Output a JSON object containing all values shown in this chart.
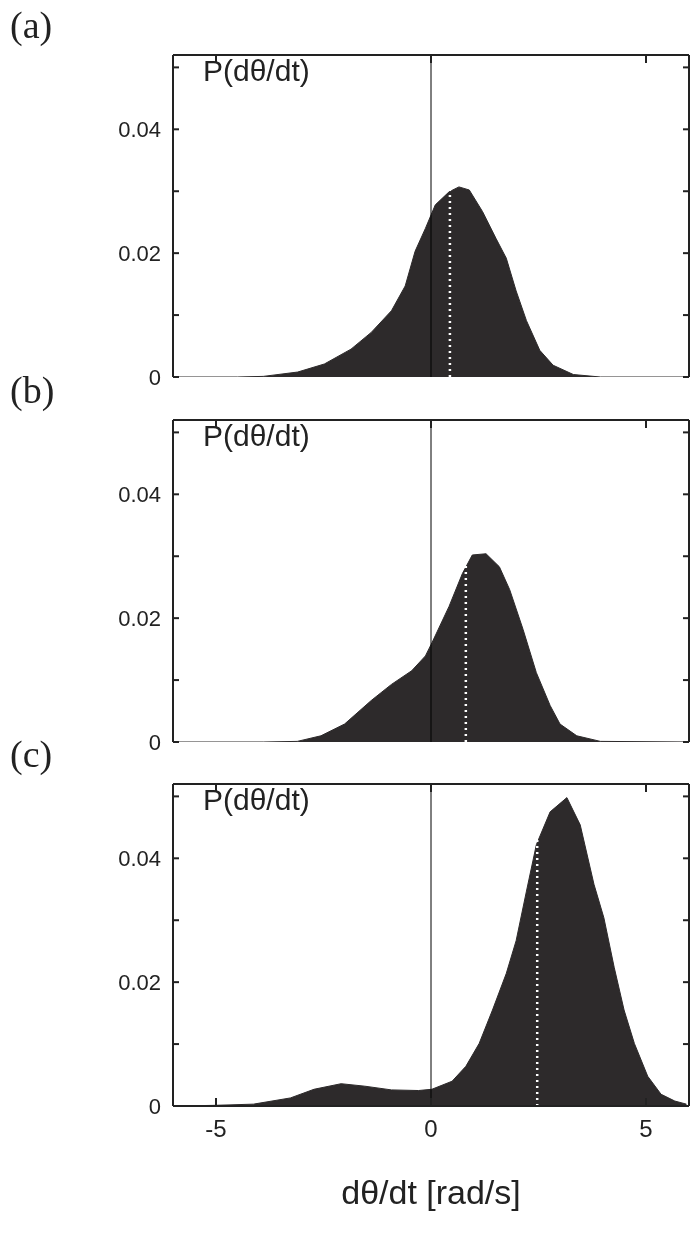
{
  "chart_data": [
    {
      "type": "area",
      "title": "(a)",
      "ylabel": "P(dθ/dt)",
      "xlim": [
        -6,
        6
      ],
      "xticks": [
        -5,
        0,
        5
      ],
      "ylim": [
        0,
        0.052
      ],
      "yticks": [
        0,
        {
          "value": 0.01,
          "label": null
        },
        0.02,
        {
          "value": 0.03,
          "label": null
        },
        0.04,
        {
          "value": 0.05,
          "label": null
        }
      ],
      "tick_labels": "y",
      "grid": false,
      "legend": false,
      "series": [
        {
          "color": "#2d2a2b",
          "x": [
            -6,
            -4.5,
            -3.9,
            -3.1,
            -2.48,
            -1.86,
            -1.39,
            -0.92,
            -0.6,
            -0.37,
            -0.13,
            0.1,
            0.42,
            0.65,
            0.89,
            1.2,
            1.51,
            1.75,
            1.98,
            2.22,
            2.53,
            2.84,
            3.31,
            3.94,
            6
          ],
          "values": [
            0,
            0,
            0.0001,
            0.0008,
            0.0021,
            0.0045,
            0.0072,
            0.0107,
            0.0147,
            0.0203,
            0.024,
            0.0278,
            0.0299,
            0.0307,
            0.0302,
            0.0267,
            0.0224,
            0.0192,
            0.0139,
            0.0091,
            0.0043,
            0.0019,
            0.0004,
            0,
            0
          ]
        }
      ],
      "ref_lines": [
        {
          "axis": "x",
          "value": 0,
          "color": "#000000",
          "line_style": "solid"
        },
        {
          "axis": "x",
          "value": 0.44,
          "color": "#ffffff",
          "line_style": "dotted"
        }
      ]
    },
    {
      "type": "area",
      "title": "(b)",
      "ylabel": "P(dθ/dt)",
      "xlim": [
        -6,
        6
      ],
      "xticks": [
        -5,
        0,
        5
      ],
      "ylim": [
        0,
        0.052
      ],
      "yticks": [
        0,
        {
          "value": 0.01,
          "label": null
        },
        0.02,
        {
          "value": 0.03,
          "label": null
        },
        0.04,
        {
          "value": 0.05,
          "label": null
        }
      ],
      "tick_labels": "y",
      "grid": false,
      "legend": false,
      "series": [
        {
          "color": "#2d2a2b",
          "x": [
            -6,
            -3.9,
            -3.11,
            -2.56,
            -2.01,
            -1.39,
            -0.92,
            -0.45,
            -0.13,
            0.02,
            0.42,
            0.73,
            0.96,
            1.28,
            1.59,
            1.83,
            2.14,
            2.45,
            2.77,
            3.0,
            3.39,
            3.94,
            6
          ],
          "values": [
            0,
            0,
            0.0001,
            0.001,
            0.0029,
            0.0067,
            0.0093,
            0.0115,
            0.0139,
            0.016,
            0.0219,
            0.0272,
            0.0302,
            0.0304,
            0.0283,
            0.0246,
            0.0182,
            0.0112,
            0.0059,
            0.0029,
            0.001,
            0.0001,
            0
          ]
        }
      ],
      "ref_lines": [
        {
          "axis": "x",
          "value": 0,
          "color": "#000000",
          "line_style": "solid"
        },
        {
          "axis": "x",
          "value": 0.81,
          "color": "#ffffff",
          "line_style": "dotted"
        }
      ]
    },
    {
      "type": "area",
      "title": "(c)",
      "ylabel": "P(dθ/dt)",
      "xlabel": "dθ/dt [rad/s]",
      "xlim": [
        -6,
        6
      ],
      "xticks": [
        -5,
        0,
        5
      ],
      "ylim": [
        0,
        0.052
      ],
      "yticks": [
        0,
        {
          "value": 0.01,
          "label": null
        },
        0.02,
        {
          "value": 0.03,
          "label": null
        },
        0.04,
        {
          "value": 0.05,
          "label": null
        }
      ],
      "grid": false,
      "legend": false,
      "series": [
        {
          "color": "#2d2a2b",
          "x": [
            -6,
            -5.07,
            -4.13,
            -3.27,
            -2.72,
            -2.09,
            -1.54,
            -0.92,
            -0.29,
            0.02,
            0.49,
            0.81,
            1.12,
            1.43,
            1.75,
            1.98,
            2.22,
            2.45,
            2.77,
            3.16,
            3.47,
            3.79,
            4.02,
            4.26,
            4.49,
            4.73,
            5.04,
            5.35,
            5.67,
            5.94
          ],
          "values": [
            0,
            0.0001,
            0.0003,
            0.0013,
            0.0027,
            0.0036,
            0.0032,
            0.0026,
            0.0025,
            0.0027,
            0.004,
            0.0064,
            0.0101,
            0.0155,
            0.0214,
            0.0267,
            0.0347,
            0.0422,
            0.0475,
            0.0498,
            0.0454,
            0.0358,
            0.0304,
            0.0224,
            0.0155,
            0.0101,
            0.0048,
            0.0019,
            0.0008,
            0.0003
          ]
        }
      ],
      "ref_lines": [
        {
          "axis": "x",
          "value": 0,
          "color": "#000000",
          "line_style": "solid"
        },
        {
          "axis": "x",
          "value": 2.47,
          "color": "#ffffff",
          "line_style": "dotted"
        }
      ]
    }
  ]
}
